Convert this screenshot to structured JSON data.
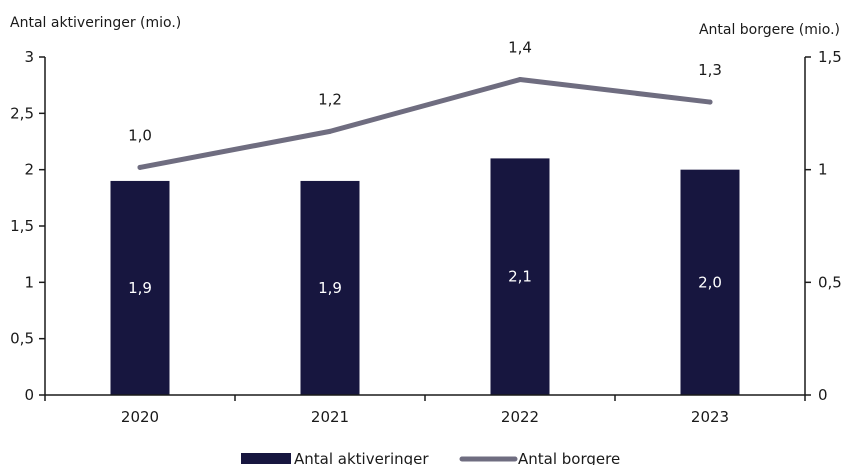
{
  "chart_data": {
    "type": "bar",
    "categories": [
      "2020",
      "2021",
      "2022",
      "2023"
    ],
    "series": [
      {
        "name": "Antal aktiveringer",
        "kind": "bar",
        "axis": "left",
        "values": [
          1.9,
          1.9,
          2.1,
          2.0
        ],
        "labels": [
          "1,9",
          "1,9",
          "2,1",
          "2,0"
        ],
        "color": "#17163f"
      },
      {
        "name": "Antal borgere",
        "kind": "line",
        "axis": "right",
        "values": [
          1.01,
          1.17,
          1.4,
          1.3
        ],
        "labels": [
          "1,0",
          "1,2",
          "1,4",
          "1,3"
        ],
        "color": "#6f6d80"
      }
    ],
    "y_left": {
      "label": "Antal aktiveringer (mio.)",
      "ylim": [
        0,
        3
      ],
      "ticks": [
        0,
        0.5,
        1,
        1.5,
        2,
        2.5,
        3
      ],
      "tick_labels": [
        "0",
        "0,5",
        "1",
        "1,5",
        "2",
        "2,5",
        "3"
      ]
    },
    "y_right": {
      "label": "Antal borgere (mio.)",
      "ylim": [
        0,
        1.5
      ],
      "ticks": [
        0,
        0.5,
        1,
        1.5
      ],
      "tick_labels": [
        "0",
        "0,5",
        "1",
        "1,5"
      ]
    },
    "grid": false,
    "legend": "bottom"
  }
}
